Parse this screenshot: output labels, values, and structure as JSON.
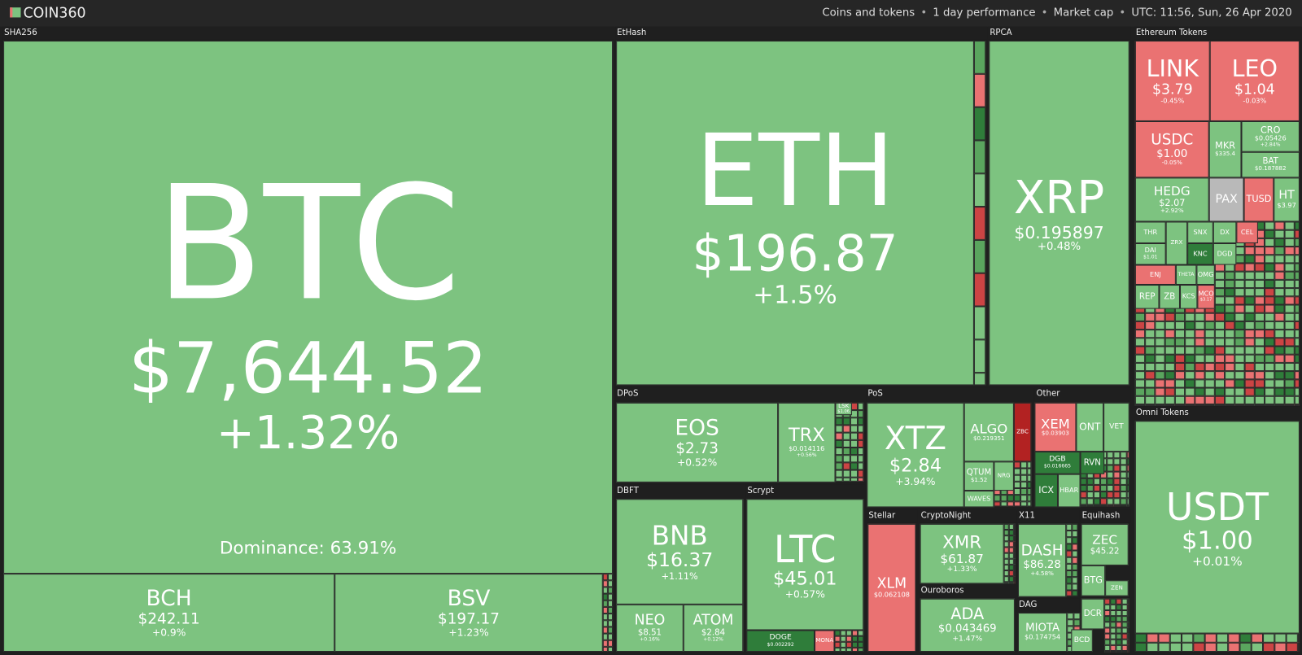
{
  "header": {
    "logo": "COIN360",
    "filters": [
      "Coins and tokens",
      "1 day performance",
      "Market cap",
      "UTC: 11:56, Sun, 26 Apr 2020"
    ]
  },
  "groups": [
    {
      "name": "SHA256",
      "tiles": [
        {
          "symbol": "BTC",
          "price": "$7,644.52",
          "change": "+1.32%",
          "dominance": "Dominance: 63.91%"
        },
        {
          "symbol": "BCH",
          "price": "$242.11",
          "change": "+0.9%"
        },
        {
          "symbol": "BSV",
          "price": "$197.17",
          "change": "+1.23%"
        }
      ]
    },
    {
      "name": "EtHash",
      "tiles": [
        {
          "symbol": "ETH",
          "price": "$196.87",
          "change": "+1.5%"
        }
      ]
    },
    {
      "name": "RPCA",
      "tiles": [
        {
          "symbol": "XRP",
          "price": "$0.195897",
          "change": "+0.48%"
        }
      ]
    },
    {
      "name": "Ethereum Tokens",
      "tiles": [
        {
          "symbol": "LINK",
          "price": "$3.79",
          "change": "-0.45%"
        },
        {
          "symbol": "LEO",
          "price": "$1.04",
          "change": "-0.03%"
        },
        {
          "symbol": "USDC",
          "price": "$1.00",
          "change": "-0.05%"
        },
        {
          "symbol": "MKR",
          "price": "$335.4"
        },
        {
          "symbol": "CRO",
          "price": "$0.05426",
          "change": "+2.84%"
        },
        {
          "symbol": "BAT",
          "price": "$0.187882"
        },
        {
          "symbol": "HEDG",
          "price": "$2.07",
          "change": "+2.92%"
        },
        {
          "symbol": "PAX"
        },
        {
          "symbol": "TUSD"
        },
        {
          "symbol": "HT",
          "price": "$3.97"
        },
        {
          "symbol": "THR"
        },
        {
          "symbol": "SNX"
        },
        {
          "symbol": "DX"
        },
        {
          "symbol": "CEL"
        },
        {
          "symbol": "DAI",
          "price": "$1.01"
        },
        {
          "symbol": "ZRX"
        },
        {
          "symbol": "KNC"
        },
        {
          "symbol": "DGD"
        },
        {
          "symbol": "ENJ"
        },
        {
          "symbol": "THETA"
        },
        {
          "symbol": "OMG"
        },
        {
          "symbol": "REP"
        },
        {
          "symbol": "ZB"
        },
        {
          "symbol": "KCS"
        },
        {
          "symbol": "MCO",
          "price": "$3.17"
        }
      ]
    },
    {
      "name": "Omni Tokens",
      "tiles": [
        {
          "symbol": "USDT",
          "price": "$1.00",
          "change": "+0.01%"
        }
      ]
    },
    {
      "name": "DPoS",
      "tiles": [
        {
          "symbol": "EOS",
          "price": "$2.73",
          "change": "+0.52%"
        },
        {
          "symbol": "TRX",
          "price": "$0.014116",
          "change": "+0.56%"
        },
        {
          "symbol": "LSK",
          "price": "$1.06"
        }
      ]
    },
    {
      "name": "DBFT",
      "tiles": [
        {
          "symbol": "BNB",
          "price": "$16.37",
          "change": "+1.11%"
        },
        {
          "symbol": "NEO",
          "price": "$8.51",
          "change": "+0.16%"
        },
        {
          "symbol": "ATOM",
          "price": "$2.84",
          "change": "+0.12%"
        }
      ]
    },
    {
      "name": "Scrypt",
      "tiles": [
        {
          "symbol": "LTC",
          "price": "$45.01",
          "change": "+0.57%"
        },
        {
          "symbol": "DOGE",
          "price": "$0.002292"
        },
        {
          "symbol": "MONA"
        }
      ]
    },
    {
      "name": "PoS",
      "tiles": [
        {
          "symbol": "XTZ",
          "price": "$2.84",
          "change": "+3.94%"
        },
        {
          "symbol": "ALGO",
          "price": "$0.219351"
        },
        {
          "symbol": "ZBC"
        },
        {
          "symbol": "QTUM",
          "price": "$1.52"
        },
        {
          "symbol": "NRG"
        },
        {
          "symbol": "WAVES"
        }
      ]
    },
    {
      "name": "Other",
      "tiles": [
        {
          "symbol": "XEM",
          "price": "$0.03903"
        },
        {
          "symbol": "ONT"
        },
        {
          "symbol": "VET"
        },
        {
          "symbol": "DGB",
          "price": "$0.016665"
        },
        {
          "symbol": "RVN"
        },
        {
          "symbol": "ICX"
        },
        {
          "symbol": "HBAR"
        }
      ]
    },
    {
      "name": "Stellar",
      "tiles": [
        {
          "symbol": "XLM",
          "price": "$0.062108"
        }
      ]
    },
    {
      "name": "CryptoNight",
      "tiles": [
        {
          "symbol": "XMR",
          "price": "$61.87",
          "change": "+1.33%"
        }
      ]
    },
    {
      "name": "Ouroboros",
      "tiles": [
        {
          "symbol": "ADA",
          "price": "$0.043469",
          "change": "+1.47%"
        }
      ]
    },
    {
      "name": "X11",
      "tiles": [
        {
          "symbol": "DASH",
          "price": "$86.28",
          "change": "+4.58%"
        }
      ]
    },
    {
      "name": "Equihash",
      "tiles": [
        {
          "symbol": "ZEC",
          "price": "$45.22"
        },
        {
          "symbol": "BTG"
        },
        {
          "symbol": "ZEN"
        }
      ]
    },
    {
      "name": "DAG",
      "tiles": [
        {
          "symbol": "MIOTA",
          "price": "$0.174754"
        }
      ]
    }
  ],
  "other_tiles": [
    {
      "symbol": "DCR"
    },
    {
      "symbol": "BCD"
    }
  ]
}
